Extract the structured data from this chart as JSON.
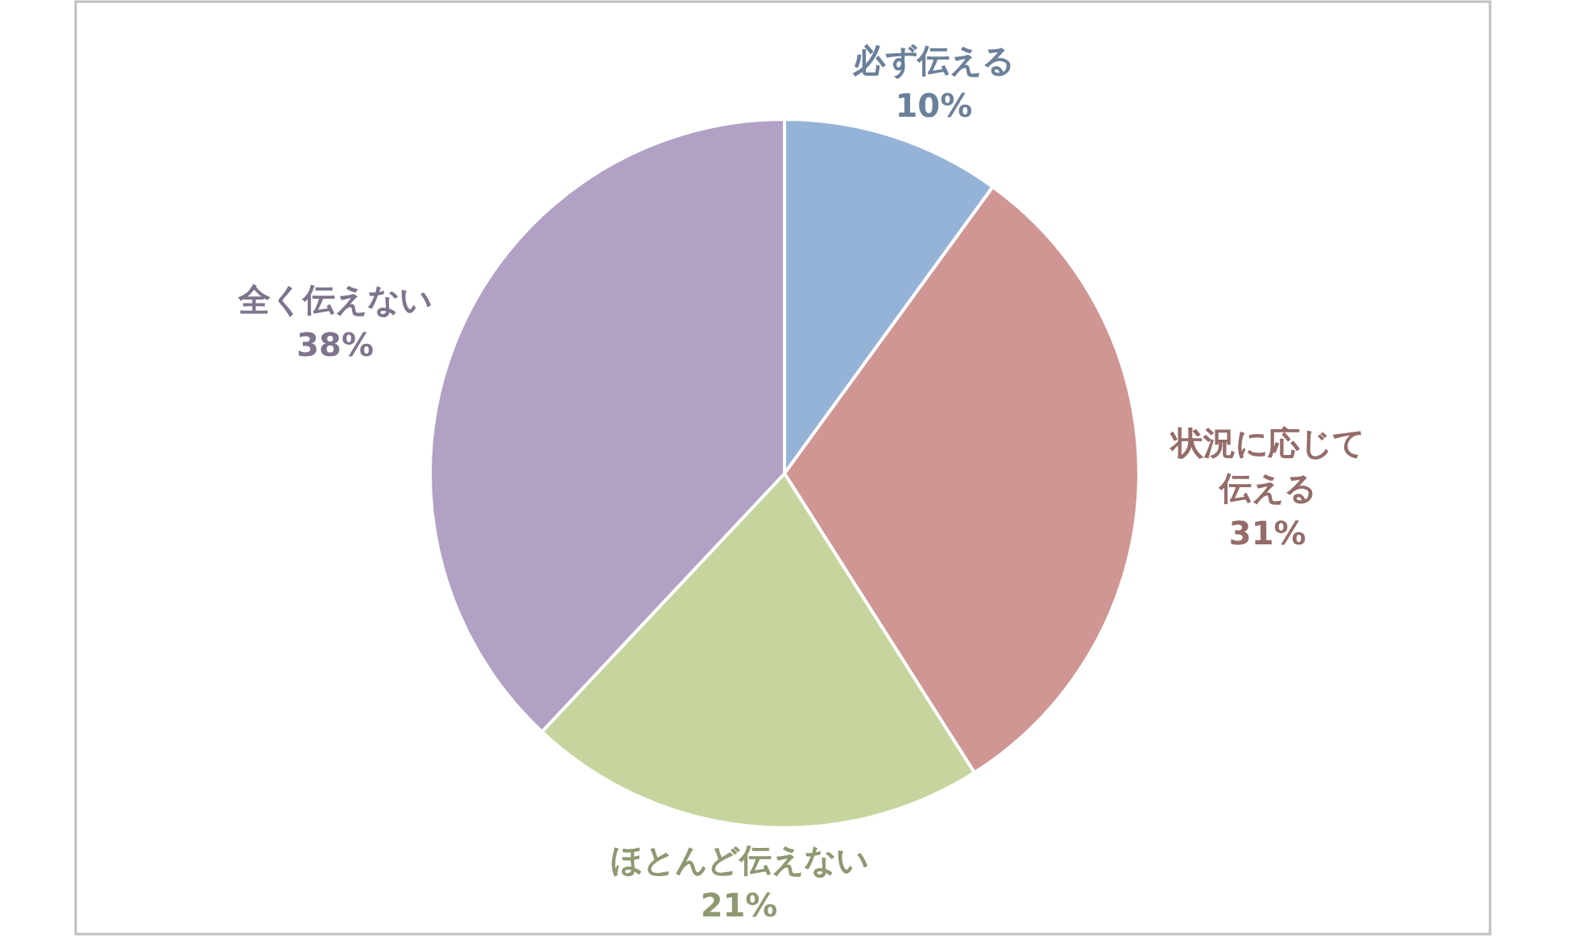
{
  "chart_data": {
    "type": "pie",
    "categories": [
      "必ず伝える",
      "状況に応じて伝える",
      "ほとんど伝えない",
      "全く伝えない"
    ],
    "values": [
      10,
      31,
      21,
      38
    ],
    "value_labels": [
      "10%",
      "31%",
      "21%",
      "38%"
    ],
    "colors": [
      "#95b3d7",
      "#d09693",
      "#c6d59e",
      "#b1a2c5"
    ]
  }
}
